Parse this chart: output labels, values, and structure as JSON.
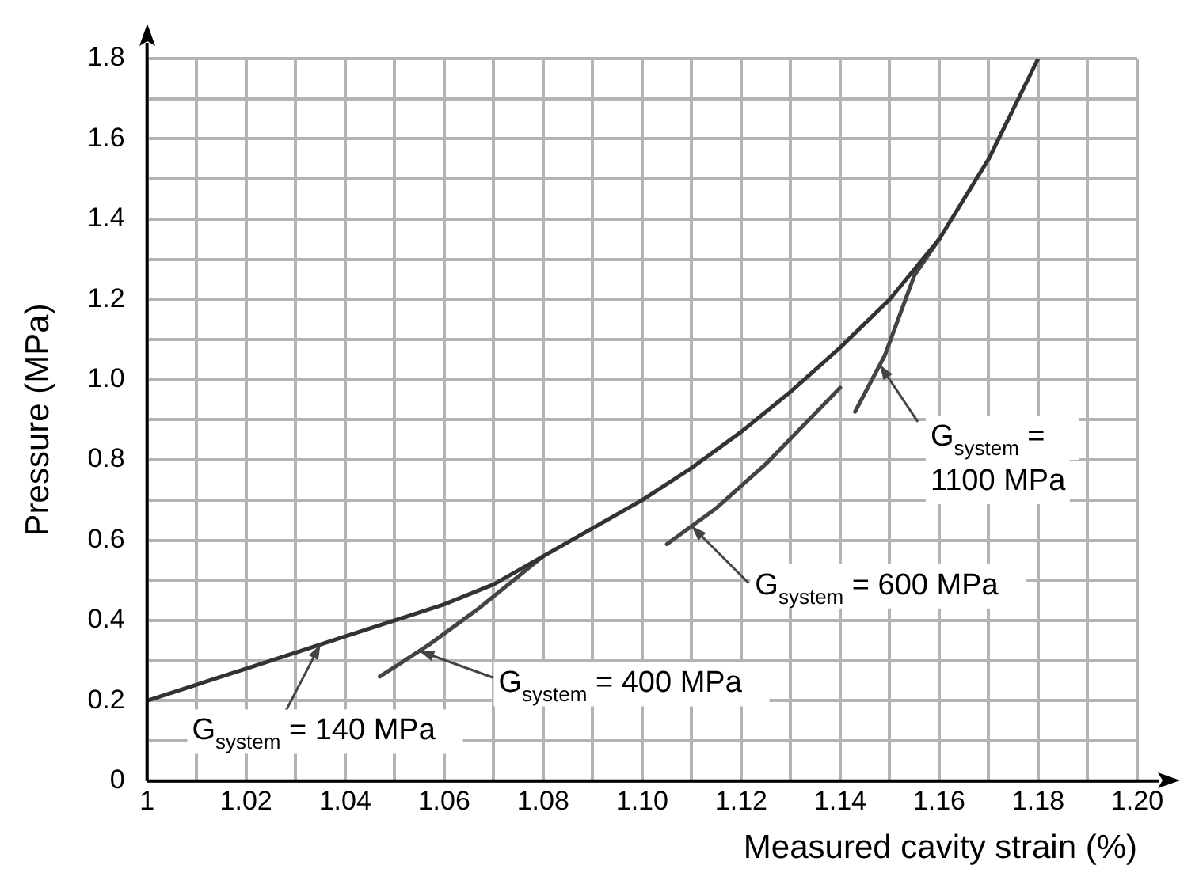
{
  "chart_data": {
    "type": "line",
    "xlabel": "Measured cavity strain (%)",
    "ylabel": "Pressure (MPa)",
    "series": [
      {
        "color": "#333333",
        "x": [
          1.0,
          1.01,
          1.02,
          1.03,
          1.04,
          1.05,
          1.06,
          1.07,
          1.08,
          1.09,
          1.1,
          1.11,
          1.12,
          1.13,
          1.14,
          1.15,
          1.16,
          1.17,
          1.18
        ],
        "values": [
          0.2,
          0.24,
          0.28,
          0.32,
          0.36,
          0.4,
          0.44,
          0.49,
          0.56,
          0.63,
          0.7,
          0.78,
          0.87,
          0.97,
          1.08,
          1.2,
          1.35,
          1.55,
          1.8
        ]
      },
      {
        "color": "#444444",
        "x": [
          1.047,
          1.057,
          1.067,
          1.08
        ],
        "values": [
          0.26,
          0.34,
          0.43,
          0.56
        ]
      },
      {
        "color": "#444444",
        "x": [
          1.105,
          1.115,
          1.125,
          1.14
        ],
        "values": [
          0.59,
          0.68,
          0.79,
          0.98
        ]
      },
      {
        "color": "#444444",
        "x": [
          1.143,
          1.149,
          1.155,
          1.16
        ],
        "values": [
          0.92,
          1.06,
          1.26,
          1.35
        ]
      }
    ],
    "xlim": [
      1.0,
      1.2
    ],
    "ylim": [
      0,
      1.8
    ],
    "xticks": [
      {
        "value": 1,
        "label": "1"
      },
      {
        "value": 1.01,
        "label": null
      },
      1.02,
      {
        "value": 1.03,
        "label": null
      },
      1.04,
      {
        "value": 1.05,
        "label": null
      },
      1.06,
      {
        "value": 1.07,
        "label": null
      },
      1.08,
      {
        "value": 1.09,
        "label": null
      },
      {
        "value": 1.1,
        "label": "1.10"
      },
      {
        "value": 1.11,
        "label": null
      },
      1.12,
      {
        "value": 1.13,
        "label": null
      },
      1.14,
      {
        "value": 1.15,
        "label": null
      },
      1.16,
      {
        "value": 1.17,
        "label": null
      },
      1.18,
      {
        "value": 1.19,
        "label": null
      },
      {
        "value": 1.2,
        "label": "1.20"
      }
    ],
    "yticks": [
      0,
      {
        "value": 0.1,
        "label": null
      },
      0.2,
      {
        "value": 0.3,
        "label": null
      },
      0.4,
      {
        "value": 0.5,
        "label": null
      },
      0.6,
      {
        "value": 0.7,
        "label": null
      },
      0.8,
      {
        "value": 0.9,
        "label": null
      },
      {
        "value": 1,
        "label": "1.0"
      },
      {
        "value": 1.1,
        "label": null
      },
      1.2,
      {
        "value": 1.3,
        "label": null
      },
      1.4,
      {
        "value": 1.5,
        "label": null
      },
      1.6,
      {
        "value": 1.7,
        "label": null
      },
      1.8
    ],
    "grid": true,
    "legend": false,
    "marker": "none",
    "line_style": "solid",
    "annotations": [
      {
        "text": "G$_{system}$ = 140 MPa",
        "x": 1.035,
        "y": 0.34
      },
      {
        "text": "G$_{system}$ = 400 MPa",
        "x": 1.055,
        "y": 0.324
      },
      {
        "text": "G$_{system}$ = 600 MPa",
        "x": 1.11,
        "y": 0.635
      },
      {
        "text": "G$_{system}$ =\n1100 MPa",
        "x": 1.148,
        "y": 1.037
      }
    ]
  }
}
